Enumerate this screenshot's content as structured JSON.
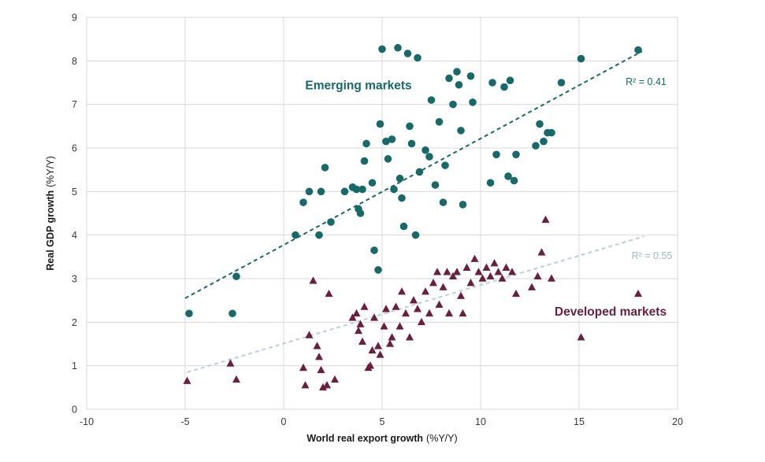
{
  "chart_data": {
    "type": "scatter",
    "xlabel": "World real export growth",
    "xlabel_unit": "(%Y/Y)",
    "ylabel": "Real GDP growth",
    "ylabel_unit": "(%Y/Y)",
    "xlim": [
      -10,
      20
    ],
    "ylim": [
      0,
      9
    ],
    "x_ticks": [
      -10,
      -5,
      0,
      5,
      10,
      15,
      20
    ],
    "y_ticks": [
      0,
      1,
      2,
      3,
      4,
      5,
      6,
      7,
      8,
      9
    ],
    "grid": true,
    "grid_color": "#d9d9d9",
    "tick_color": "#3a3a3a",
    "title_color": "#1a1a1a",
    "legend_position": "inline-annotations",
    "series": [
      {
        "name": "Emerging markets",
        "marker": "circle",
        "color": "#17696a",
        "r2_label": "R² = 0.41",
        "r2_color": "#17696a",
        "trendline": {
          "x1": -5,
          "y1": 2.55,
          "x2": 18.2,
          "y2": 8.22,
          "color": "#17696a",
          "dash": "5 4"
        },
        "label_pos": {
          "x": 3.8,
          "y": 7.35
        },
        "r2_pos": {
          "x": 18.4,
          "y": 7.45
        },
        "points": [
          [
            -4.8,
            2.2
          ],
          [
            -2.6,
            2.2
          ],
          [
            -2.4,
            3.05
          ],
          [
            0.6,
            4.0
          ],
          [
            1.0,
            4.75
          ],
          [
            1.3,
            5.0
          ],
          [
            1.8,
            4.0
          ],
          [
            1.9,
            5.0
          ],
          [
            2.1,
            5.55
          ],
          [
            2.4,
            4.3
          ],
          [
            3.1,
            5.0
          ],
          [
            3.5,
            5.1
          ],
          [
            3.7,
            5.05
          ],
          [
            3.8,
            4.6
          ],
          [
            3.9,
            4.5
          ],
          [
            4.0,
            5.05
          ],
          [
            4.1,
            5.7
          ],
          [
            4.2,
            6.1
          ],
          [
            4.5,
            5.2
          ],
          [
            4.6,
            3.65
          ],
          [
            4.8,
            3.2
          ],
          [
            4.9,
            6.55
          ],
          [
            5.0,
            8.27
          ],
          [
            5.2,
            6.15
          ],
          [
            5.3,
            5.75
          ],
          [
            5.5,
            6.2
          ],
          [
            5.6,
            5.05
          ],
          [
            5.8,
            8.3
          ],
          [
            5.9,
            5.3
          ],
          [
            6.0,
            4.85
          ],
          [
            6.1,
            4.2
          ],
          [
            6.3,
            8.17
          ],
          [
            6.4,
            6.5
          ],
          [
            6.5,
            6.1
          ],
          [
            6.7,
            4.0
          ],
          [
            6.8,
            8.07
          ],
          [
            6.9,
            5.45
          ],
          [
            7.2,
            5.95
          ],
          [
            7.4,
            5.8
          ],
          [
            7.5,
            7.1
          ],
          [
            7.7,
            5.15
          ],
          [
            7.9,
            6.6
          ],
          [
            8.1,
            4.75
          ],
          [
            8.2,
            5.6
          ],
          [
            8.4,
            7.6
          ],
          [
            8.6,
            7.0
          ],
          [
            8.8,
            7.75
          ],
          [
            8.9,
            7.45
          ],
          [
            9.0,
            6.4
          ],
          [
            9.1,
            4.7
          ],
          [
            9.5,
            7.65
          ],
          [
            9.6,
            7.05
          ],
          [
            10.5,
            5.2
          ],
          [
            10.6,
            7.5
          ],
          [
            10.8,
            5.85
          ],
          [
            11.2,
            7.4
          ],
          [
            11.4,
            5.35
          ],
          [
            11.5,
            7.55
          ],
          [
            11.7,
            5.25
          ],
          [
            11.8,
            5.85
          ],
          [
            12.8,
            6.05
          ],
          [
            13.0,
            6.55
          ],
          [
            13.2,
            6.15
          ],
          [
            13.4,
            6.35
          ],
          [
            13.6,
            6.35
          ],
          [
            14.1,
            7.5
          ],
          [
            15.1,
            8.05
          ],
          [
            18.0,
            8.25
          ]
        ]
      },
      {
        "name": "Developed markets",
        "marker": "triangle",
        "color": "#6b1f40",
        "r2_label": "R² = 0.55",
        "r2_color": "#9db8c4",
        "trendline": {
          "x1": -4.9,
          "y1": 0.85,
          "x2": 18.3,
          "y2": 3.97,
          "color": "#bccfd8",
          "dash": "5 4"
        },
        "label_pos": {
          "x": 16.6,
          "y": 2.15
        },
        "r2_pos": {
          "x": 18.7,
          "y": 3.45
        },
        "points": [
          [
            -4.9,
            0.65
          ],
          [
            -2.7,
            1.05
          ],
          [
            -2.4,
            0.68
          ],
          [
            1.0,
            0.95
          ],
          [
            1.1,
            0.55
          ],
          [
            1.3,
            1.7
          ],
          [
            1.5,
            2.95
          ],
          [
            1.7,
            1.45
          ],
          [
            1.8,
            1.2
          ],
          [
            1.9,
            0.9
          ],
          [
            2.0,
            0.5
          ],
          [
            2.2,
            0.55
          ],
          [
            2.3,
            2.65
          ],
          [
            2.6,
            0.68
          ],
          [
            3.5,
            2.1
          ],
          [
            3.7,
            2.2
          ],
          [
            3.8,
            1.8
          ],
          [
            3.9,
            1.95
          ],
          [
            4.0,
            1.55
          ],
          [
            4.1,
            2.35
          ],
          [
            4.3,
            0.95
          ],
          [
            4.4,
            1.0
          ],
          [
            4.5,
            1.35
          ],
          [
            4.6,
            2.1
          ],
          [
            4.8,
            1.45
          ],
          [
            4.9,
            1.25
          ],
          [
            5.1,
            1.9
          ],
          [
            5.2,
            2.3
          ],
          [
            5.4,
            1.5
          ],
          [
            5.5,
            1.65
          ],
          [
            5.7,
            2.35
          ],
          [
            5.9,
            1.9
          ],
          [
            6.0,
            2.7
          ],
          [
            6.2,
            2.2
          ],
          [
            6.4,
            1.65
          ],
          [
            6.6,
            2.5
          ],
          [
            6.8,
            2.3
          ],
          [
            7.0,
            2.0
          ],
          [
            7.2,
            2.7
          ],
          [
            7.4,
            2.2
          ],
          [
            7.6,
            2.9
          ],
          [
            7.8,
            3.15
          ],
          [
            7.9,
            2.4
          ],
          [
            8.1,
            2.8
          ],
          [
            8.3,
            3.15
          ],
          [
            8.4,
            2.2
          ],
          [
            8.6,
            3.05
          ],
          [
            8.8,
            3.15
          ],
          [
            9.0,
            2.6
          ],
          [
            9.1,
            2.2
          ],
          [
            9.3,
            3.25
          ],
          [
            9.5,
            2.9
          ],
          [
            9.7,
            3.45
          ],
          [
            9.9,
            3.15
          ],
          [
            10.1,
            3.0
          ],
          [
            10.3,
            3.25
          ],
          [
            10.5,
            3.05
          ],
          [
            10.7,
            3.35
          ],
          [
            10.9,
            3.15
          ],
          [
            11.1,
            3.0
          ],
          [
            11.3,
            3.25
          ],
          [
            11.6,
            3.15
          ],
          [
            11.8,
            2.65
          ],
          [
            12.6,
            2.8
          ],
          [
            12.9,
            3.05
          ],
          [
            13.1,
            3.6
          ],
          [
            13.3,
            4.35
          ],
          [
            13.6,
            3.0
          ],
          [
            15.1,
            1.65
          ],
          [
            18.0,
            2.65
          ]
        ]
      }
    ]
  }
}
